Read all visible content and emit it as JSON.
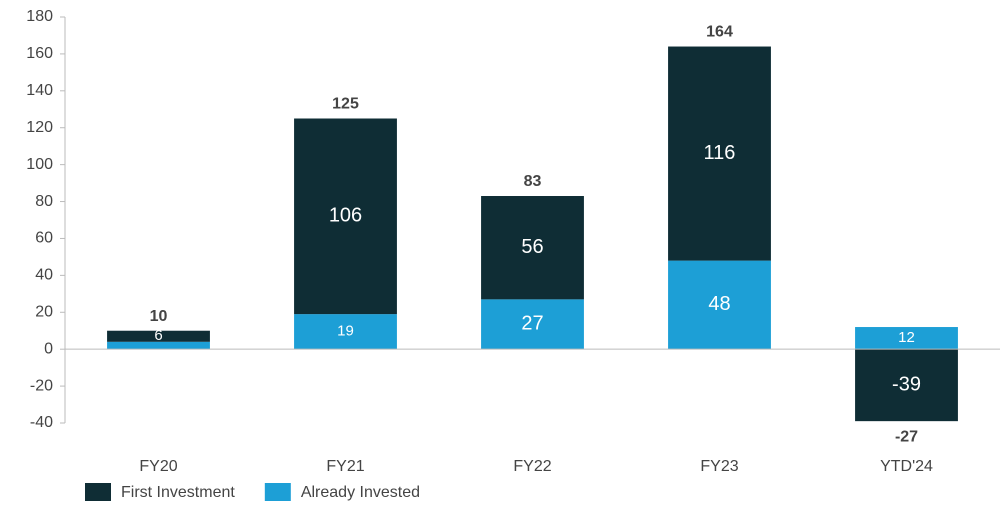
{
  "chart_data": {
    "type": "stacked_bar",
    "categories": [
      "FY20",
      "FY21",
      "FY22",
      "FY23",
      "YTD'24"
    ],
    "series": [
      {
        "name": "First Investment",
        "color": "#0f2d35",
        "values": [
          6,
          106,
          56,
          116,
          -39
        ]
      },
      {
        "name": "Already Invested",
        "color": "#1d9fd6",
        "values": [
          4,
          19,
          27,
          48,
          12
        ],
        "value_labels": [
          null,
          "19",
          "27",
          "48",
          "12"
        ]
      }
    ],
    "totals": [
      10,
      125,
      83,
      164,
      -27
    ],
    "ylim": [
      -40,
      180
    ],
    "yticks": [
      -40,
      -20,
      0,
      20,
      40,
      60,
      80,
      100,
      120,
      140,
      160,
      180
    ],
    "grid": false,
    "legend": "bottom-left"
  }
}
